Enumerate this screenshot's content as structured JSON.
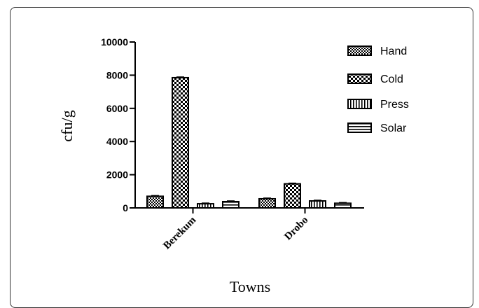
{
  "chart_data": {
    "type": "bar",
    "title": "",
    "xlabel": "Towns",
    "ylabel": "cfu/g",
    "ylim": [
      0,
      10000
    ],
    "yticks": [
      0,
      2000,
      4000,
      6000,
      8000,
      10000
    ],
    "categories": [
      "Berekum",
      "Drobo"
    ],
    "series": [
      {
        "name": "Hand",
        "values": [
          700,
          550
        ],
        "pattern": "fine-checker"
      },
      {
        "name": "Cold",
        "values": [
          7850,
          1450
        ],
        "pattern": "checker"
      },
      {
        "name": "Press",
        "values": [
          250,
          420
        ],
        "pattern": "vertical"
      },
      {
        "name": "Solar",
        "values": [
          380,
          280
        ],
        "pattern": "horizontal"
      }
    ],
    "legend_position": "top-right",
    "grid": false
  }
}
